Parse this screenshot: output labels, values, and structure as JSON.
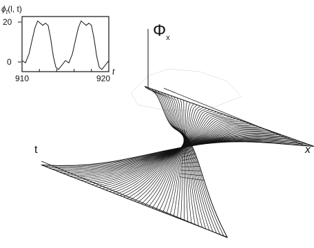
{
  "inset": {
    "ylabel": "ϕ",
    "ylabel_sub": "t",
    "ylabel_args": "(l, t)",
    "xlabel": "t",
    "xticks": [
      {
        "value": 910,
        "label": "910"
      },
      {
        "value": 920,
        "label": "920"
      }
    ],
    "yticks": [
      {
        "value": 0,
        "label": "0"
      },
      {
        "value": 20,
        "label": "20"
      }
    ]
  },
  "surface": {
    "zlabel": "Φ",
    "zlabel_sub": "x",
    "t_axis_label": "t",
    "x_axis_label": "x"
  },
  "chart_data": {
    "type": "line",
    "title": "",
    "xlabel": "t",
    "ylabel": "ϕt(l, t)",
    "xlim": [
      910,
      920
    ],
    "ylim": [
      -3,
      22
    ],
    "series": [
      {
        "x": [
          910.0,
          910.4,
          910.8,
          911.2,
          911.5,
          911.8,
          912.1,
          912.4,
          912.7,
          913.0,
          913.3,
          913.6,
          913.9,
          914.2,
          914.6,
          915.0,
          915.4,
          915.8,
          916.2,
          916.5,
          916.8,
          917.1,
          917.4,
          917.7,
          918.0,
          918.3,
          918.6,
          918.9,
          919.2,
          919.6,
          920.0
        ],
        "values": [
          2,
          1,
          5,
          12,
          17,
          20,
          19,
          18,
          19,
          18,
          12,
          4,
          -1,
          -2,
          0,
          2,
          1,
          5,
          12,
          17,
          20,
          19,
          18,
          19,
          18,
          12,
          4,
          -1,
          -2,
          0,
          2
        ]
      }
    ]
  }
}
